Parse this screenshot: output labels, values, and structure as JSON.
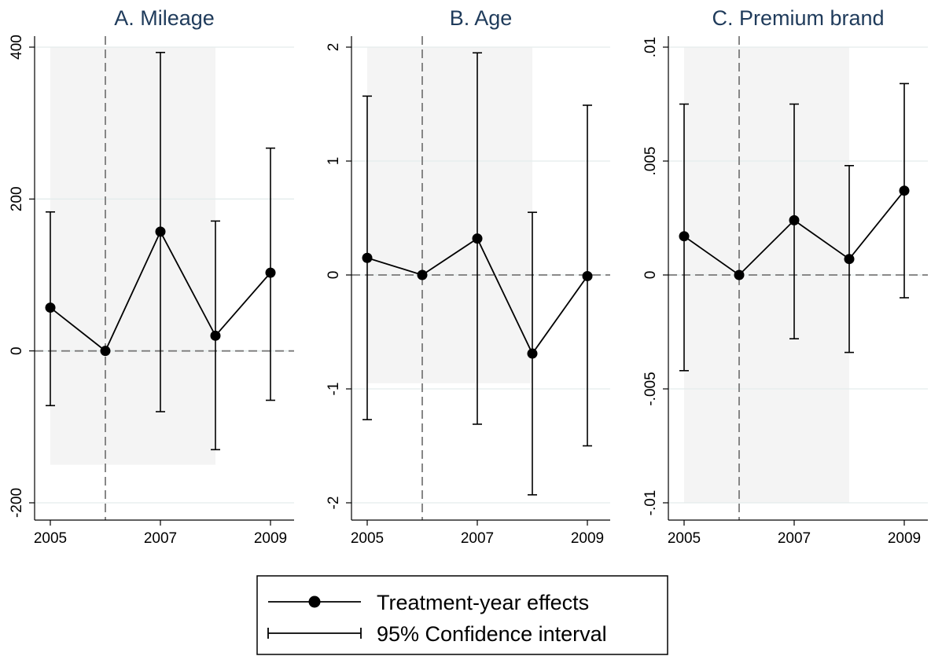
{
  "chart_data": [
    {
      "type": "line",
      "title": "A. Mileage",
      "x": [
        2005,
        2006,
        2007,
        2008,
        2009
      ],
      "xticks": [
        "2005",
        "2007",
        "2009"
      ],
      "xlim": [
        2005,
        2009
      ],
      "ylim": [
        -200,
        400
      ],
      "yticks": [
        "-200",
        "0",
        "200",
        "400"
      ],
      "ytick_values": [
        -200,
        0,
        200,
        400
      ],
      "series": [
        {
          "values": [
            57,
            0,
            157,
            20,
            103
          ]
        }
      ],
      "ci_low": [
        -72,
        0,
        -80,
        -130,
        -65
      ],
      "ci_high": [
        183,
        0,
        393,
        171,
        267
      ],
      "shade": {
        "x": [
          2005,
          2008
        ],
        "y": [
          -150,
          400
        ]
      },
      "ref_x": 2006,
      "ref_y": 0,
      "grid": true
    },
    {
      "type": "line",
      "title": "B. Age",
      "x": [
        2005,
        2006,
        2007,
        2008,
        2009
      ],
      "xticks": [
        "2005",
        "2007",
        "2009"
      ],
      "xlim": [
        2005,
        2009
      ],
      "ylim": [
        -2,
        2
      ],
      "yticks": [
        "-2",
        "-1",
        "0",
        "1",
        "2"
      ],
      "ytick_values": [
        -2,
        -1,
        0,
        1,
        2
      ],
      "series": [
        {
          "values": [
            0.15,
            0,
            0.32,
            -0.69,
            -0.01
          ]
        }
      ],
      "ci_low": [
        -1.27,
        0,
        -1.31,
        -1.93,
        -1.5
      ],
      "ci_high": [
        1.57,
        0,
        1.95,
        0.55,
        1.49
      ],
      "shade": {
        "x": [
          2005,
          2008
        ],
        "y": [
          -0.95,
          2
        ]
      },
      "ref_x": 2006,
      "ref_y": 0,
      "grid": true
    },
    {
      "type": "line",
      "title": "C. Premium brand",
      "x": [
        2005,
        2006,
        2007,
        2008,
        2009
      ],
      "xticks": [
        "2005",
        "2007",
        "2009"
      ],
      "xlim": [
        2005,
        2009
      ],
      "ylim": [
        -0.01,
        0.01
      ],
      "yticks": [
        "-.01",
        "-.005",
        "0",
        ".005",
        ".01"
      ],
      "ytick_values": [
        -0.01,
        -0.005,
        0,
        0.005,
        0.01
      ],
      "series": [
        {
          "values": [
            0.0017,
            0,
            0.0024,
            0.0007,
            0.0037
          ]
        }
      ],
      "ci_low": [
        -0.0042,
        0,
        -0.0028,
        -0.0034,
        -0.001
      ],
      "ci_high": [
        0.0075,
        0,
        0.0075,
        0.0048,
        0.0084
      ],
      "shade": {
        "x": [
          2005,
          2008
        ],
        "y": [
          -0.01,
          0.01
        ]
      },
      "ref_x": 2006,
      "ref_y": 0,
      "grid": true
    }
  ],
  "legend": {
    "placement": "bottom-center",
    "effects_label": "Treatment-year effects",
    "ci_label": "95% Confidence interval"
  },
  "colors": {
    "title": "#1f3b5b",
    "shade": "#f4f4f4",
    "grid": "#e3ecec",
    "reference": "#7a7a7a",
    "line": "#000000"
  }
}
